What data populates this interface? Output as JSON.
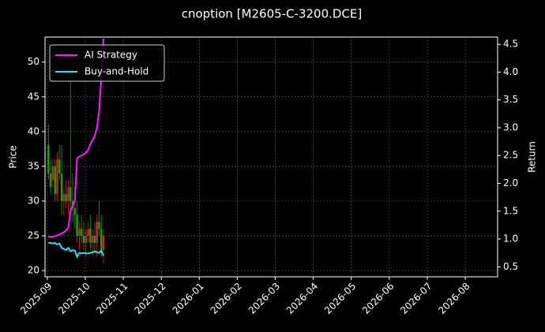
{
  "chart_data": {
    "type": "candlestick",
    "title": "cnoption [M2605-C-3200.DCE]",
    "ylabel": "Price",
    "y2label": "Return",
    "x": [
      0.03,
      0.088,
      0.146,
      0.204,
      0.262,
      0.32,
      0.378,
      0.436,
      0.494,
      0.552,
      0.61,
      0.668,
      0.726,
      0.784,
      0.842,
      0.9,
      0.958,
      1.016,
      1.074,
      1.132,
      1.19,
      1.248,
      1.306,
      1.364,
      1.422,
      1.48
    ],
    "open": [
      38,
      34,
      33,
      35,
      31,
      36,
      34,
      30,
      31,
      30,
      32,
      30,
      29,
      28,
      25,
      26,
      25,
      24,
      25,
      26,
      24,
      25,
      24,
      27,
      26,
      23
    ],
    "high": [
      41,
      36,
      36,
      36,
      37,
      38,
      38,
      32,
      33,
      33,
      48,
      34,
      32,
      30,
      27,
      28,
      27,
      26,
      27,
      28,
      26,
      27,
      28,
      30,
      28,
      26
    ],
    "low": [
      33,
      31,
      32,
      30,
      30,
      33,
      28,
      28,
      29,
      28,
      28,
      27,
      26,
      24,
      23,
      24,
      23,
      22,
      24,
      23,
      22,
      23,
      22,
      25,
      22,
      21
    ],
    "close": [
      34,
      32,
      35,
      31,
      36,
      34,
      30,
      31,
      30,
      32,
      30,
      29,
      28,
      25,
      26,
      25,
      24,
      25,
      26,
      24,
      25,
      24,
      27,
      26,
      23,
      25
    ],
    "up_color": "#e0201b",
    "down_color": "#1f9e1f",
    "series": [
      {
        "name": "AI Strategy",
        "color": "#ff1aff",
        "axis": "y2",
        "values": [
          1.04,
          1.04,
          1.04,
          1.05,
          1.06,
          1.08,
          1.1,
          1.12,
          1.15,
          1.2,
          1.5,
          1.6,
          1.7,
          2.45,
          2.48,
          2.5,
          2.52,
          2.55,
          2.6,
          2.7,
          2.78,
          2.85,
          3.0,
          3.3,
          3.9,
          4.6
        ]
      },
      {
        "name": "Buy-and-Hold",
        "color": "#1ae6ff",
        "axis": "y2",
        "values": [
          0.93,
          0.93,
          0.92,
          0.93,
          0.9,
          0.92,
          0.84,
          0.82,
          0.8,
          0.84,
          0.78,
          0.8,
          0.79,
          0.68,
          0.75,
          0.74,
          0.75,
          0.74,
          0.74,
          0.75,
          0.76,
          0.78,
          0.76,
          0.75,
          0.79,
          0.7
        ]
      }
    ],
    "xlim": [
      -0.06,
      11.85
    ],
    "xticks": [
      {
        "value": 0,
        "label": "2025-09"
      },
      {
        "value": 1,
        "label": "2025-10"
      },
      {
        "value": 2,
        "label": "2025-11"
      },
      {
        "value": 3,
        "label": "2025-12"
      },
      {
        "value": 4,
        "label": "2026-01"
      },
      {
        "value": 5,
        "label": "2026-02"
      },
      {
        "value": 6,
        "label": "2026-03"
      },
      {
        "value": 7,
        "label": "2026-04"
      },
      {
        "value": 8,
        "label": "2026-05"
      },
      {
        "value": 9,
        "label": "2026-06"
      },
      {
        "value": 10,
        "label": "2026-07"
      },
      {
        "value": 11,
        "label": "2026-08"
      }
    ],
    "ylim": [
      19.1,
      53.6
    ],
    "yticks": [
      20,
      25,
      30,
      35,
      40,
      45,
      50
    ],
    "y2lim": [
      0.32,
      4.63
    ],
    "y2ticks": [
      0.5,
      {
        "value": 1,
        "label": "1.0"
      },
      1.5,
      {
        "value": 2,
        "label": "2.0"
      },
      2.5,
      {
        "value": 3,
        "label": "3.0"
      },
      3.5,
      {
        "value": 4,
        "label": "4.0"
      },
      4.5
    ],
    "grid": true,
    "legend": "upper left"
  }
}
